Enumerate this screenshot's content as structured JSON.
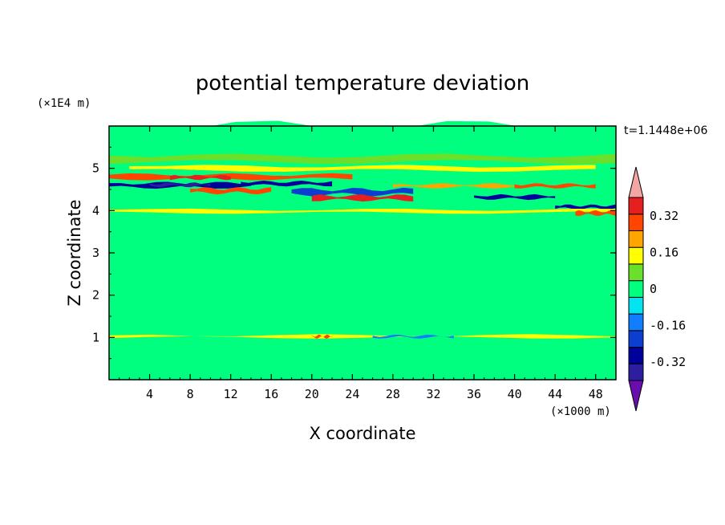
{
  "chart_data": {
    "type": "heatmap",
    "title": "potential temperature deviation",
    "xlabel": "X coordinate",
    "ylabel": "Z coordinate",
    "x_unit": "(×1000 m)",
    "y_unit": "(×1E4 m)",
    "time_label": "t=1.1448e+06",
    "xlim": [
      0,
      50
    ],
    "ylim": [
      0,
      6
    ],
    "x_ticks": [
      "4",
      "8",
      "12",
      "16",
      "20",
      "24",
      "28",
      "32",
      "36",
      "40",
      "44",
      "48"
    ],
    "y_ticks": [
      "1",
      "2",
      "3",
      "4",
      "5"
    ],
    "x_tick_values": [
      4,
      8,
      12,
      16,
      20,
      24,
      28,
      32,
      36,
      40,
      44,
      48
    ],
    "y_tick_values": [
      1,
      2,
      3,
      4,
      5
    ],
    "colorbar": {
      "levels": [
        -0.48,
        -0.4,
        -0.32,
        -0.24,
        -0.16,
        -0.08,
        0,
        0.08,
        0.16,
        0.24,
        0.32,
        0.4,
        0.48
      ],
      "colors": [
        "#6a0dad",
        "#2c1e9e",
        "#00009b",
        "#0c3fd0",
        "#0f7fff",
        "#00e5f0",
        "#00ff7f",
        "#6ae02a",
        "#ffff00",
        "#ffa500",
        "#ff4500",
        "#e62020",
        "#f4a6a6"
      ],
      "tick_labels": [
        "0.32",
        "0.16",
        "0",
        "-0.16",
        "-0.32"
      ],
      "tick_values": [
        0.32,
        0.16,
        0,
        -0.16,
        -0.32
      ]
    },
    "background_level": -0.04,
    "features": [
      {
        "x": [
          0,
          50
        ],
        "z": [
          5.6,
          6.0
        ],
        "value": -0.04
      },
      {
        "x": [
          0,
          50
        ],
        "z": [
          5.15,
          5.3
        ],
        "value": 0.04
      },
      {
        "x": [
          2,
          48
        ],
        "z": [
          4.95,
          5.05
        ],
        "value": 0.12
      },
      {
        "x": [
          0,
          24
        ],
        "z": [
          4.75,
          4.85
        ],
        "value": 0.28
      },
      {
        "x": [
          6,
          12
        ],
        "z": [
          4.75,
          4.82
        ],
        "value": 0.36
      },
      {
        "x": [
          0,
          14
        ],
        "z": [
          4.55,
          4.65
        ],
        "value": -0.36
      },
      {
        "x": [
          4,
          10
        ],
        "z": [
          4.58,
          4.64
        ],
        "value": -0.4
      },
      {
        "x": [
          13,
          22
        ],
        "z": [
          4.6,
          4.68
        ],
        "value": -0.32
      },
      {
        "x": [
          8,
          16
        ],
        "z": [
          4.42,
          4.52
        ],
        "value": 0.32
      },
      {
        "x": [
          18,
          30
        ],
        "z": [
          4.38,
          4.5
        ],
        "value": -0.28
      },
      {
        "x": [
          20,
          30
        ],
        "z": [
          4.25,
          4.35
        ],
        "value": 0.36
      },
      {
        "x": [
          28,
          40
        ],
        "z": [
          4.55,
          4.62
        ],
        "value": 0.2
      },
      {
        "x": [
          36,
          44
        ],
        "z": [
          4.28,
          4.36
        ],
        "value": -0.32
      },
      {
        "x": [
          40,
          48
        ],
        "z": [
          4.55,
          4.62
        ],
        "value": 0.28
      },
      {
        "x": [
          44,
          50
        ],
        "z": [
          4.05,
          4.12
        ],
        "value": -0.36
      },
      {
        "x": [
          0,
          50
        ],
        "z": [
          3.95,
          4.02
        ],
        "value": 0.12
      },
      {
        "x": [
          46,
          50
        ],
        "z": [
          3.9,
          3.98
        ],
        "value": 0.28
      },
      {
        "x": [
          0,
          50
        ],
        "z": [
          1.0,
          1.05
        ],
        "value": 0.12
      },
      {
        "x": [
          20,
          22
        ],
        "z": [
          1.0,
          1.04
        ],
        "value": 0.3
      },
      {
        "x": [
          26,
          34
        ],
        "z": [
          1.0,
          1.04
        ],
        "value": -0.2
      }
    ]
  }
}
